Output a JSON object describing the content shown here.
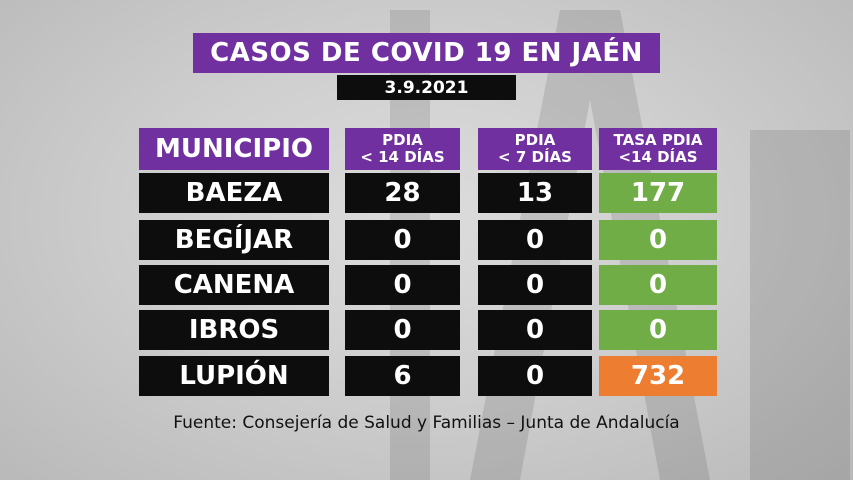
{
  "title": "CASOS DE COVID 19 EN JAÉN",
  "date": "3.9.2021",
  "headers": {
    "municipio": "MUNICIPIO",
    "pdia14_line1": "PDIA",
    "pdia14_line2": "< 14 DÍAS",
    "pdia7_line1": "PDIA",
    "pdia7_line2": "< 7 DÍAS",
    "tasa_line1": "TASA PDIA",
    "tasa_line2": "<14 DÍAS"
  },
  "rows": [
    {
      "municipio": "BAEZA",
      "pdia14": "28",
      "pdia7": "13",
      "tasa": "177",
      "tasa_color": "#70ad47"
    },
    {
      "municipio": "BEGÍJAR",
      "pdia14": "0",
      "pdia7": "0",
      "tasa": "0",
      "tasa_color": "#70ad47"
    },
    {
      "municipio": "CANENA",
      "pdia14": "0",
      "pdia7": "0",
      "tasa": "0",
      "tasa_color": "#70ad47"
    },
    {
      "municipio": "IBROS",
      "pdia14": "0",
      "pdia7": "0",
      "tasa": "0",
      "tasa_color": "#70ad47"
    },
    {
      "municipio": "LUPIÓN",
      "pdia14": "6",
      "pdia7": "0",
      "tasa": "732",
      "tasa_color": "#ed7d31"
    }
  ],
  "source": "Fuente: Consejería de Salud y Familias – Junta de Andalucía",
  "colors": {
    "header": "#7030a0",
    "cell": "#0d0d0d",
    "low": "#70ad47",
    "high": "#ed7d31"
  }
}
